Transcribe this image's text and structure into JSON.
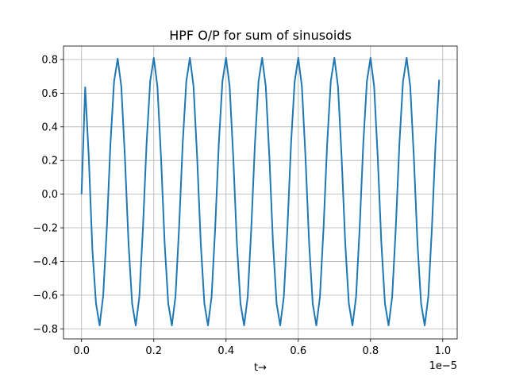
{
  "chart_data": {
    "type": "line",
    "title": "HPF O/P for sum of sinusoids",
    "xlabel": "t→",
    "ylabel": "",
    "x_offset_text": "1e−5",
    "x_scale": 1e-05,
    "xlim": [
      -0.05,
      1.04
    ],
    "ylim": [
      -0.86,
      0.88
    ],
    "xticks": [
      0.0,
      0.2,
      0.4,
      0.6,
      0.8,
      1.0
    ],
    "xtick_labels": [
      "0.0",
      "0.2",
      "0.4",
      "0.6",
      "0.8",
      "1.0"
    ],
    "yticks": [
      -0.8,
      -0.6,
      -0.4,
      -0.2,
      0.0,
      0.2,
      0.4,
      0.6,
      0.8
    ],
    "ytick_labels": [
      "−0.8",
      "−0.6",
      "−0.4",
      "−0.2",
      "0.0",
      "0.2",
      "0.4",
      "0.6",
      "0.8"
    ],
    "grid": true,
    "color": "#1f77b4",
    "series": [
      {
        "x": [
          0.0,
          0.01,
          0.02,
          0.03,
          0.04,
          0.05,
          0.06,
          0.07,
          0.08,
          0.09,
          0.1,
          0.11,
          0.12,
          0.13,
          0.14,
          0.15,
          0.16,
          0.17,
          0.18,
          0.19,
          0.2,
          0.21,
          0.22,
          0.23,
          0.24,
          0.25,
          0.26,
          0.27,
          0.28,
          0.29,
          0.3,
          0.31,
          0.32,
          0.33,
          0.34,
          0.35,
          0.36,
          0.37,
          0.38,
          0.39,
          0.4,
          0.41,
          0.42,
          0.43,
          0.44,
          0.45,
          0.46,
          0.47,
          0.48,
          0.49,
          0.5,
          0.51,
          0.52,
          0.53,
          0.54,
          0.55,
          0.56,
          0.57,
          0.58,
          0.59,
          0.6,
          0.61,
          0.62,
          0.63,
          0.64,
          0.65,
          0.66,
          0.67,
          0.68,
          0.69,
          0.7,
          0.71,
          0.72,
          0.73,
          0.74,
          0.75,
          0.76,
          0.77,
          0.78,
          0.79,
          0.8,
          0.81,
          0.82,
          0.83,
          0.84,
          0.85,
          0.86,
          0.87,
          0.88,
          0.89,
          0.9,
          0.91,
          0.92,
          0.93,
          0.94,
          0.95,
          0.96,
          0.97,
          0.98,
          0.99
        ],
        "y": [
          0.0,
          0.635,
          0.22,
          -0.33,
          -0.65,
          -0.78,
          -0.6,
          -0.2,
          0.3,
          0.67,
          0.805,
          0.64,
          0.22,
          -0.29,
          -0.65,
          -0.78,
          -0.61,
          -0.2,
          0.3,
          0.67,
          0.81,
          0.64,
          0.22,
          -0.29,
          -0.65,
          -0.78,
          -0.61,
          -0.2,
          0.3,
          0.67,
          0.81,
          0.64,
          0.22,
          -0.29,
          -0.65,
          -0.78,
          -0.61,
          -0.2,
          0.3,
          0.67,
          0.81,
          0.64,
          0.22,
          -0.29,
          -0.65,
          -0.78,
          -0.61,
          -0.2,
          0.3,
          0.67,
          0.81,
          0.64,
          0.22,
          -0.29,
          -0.65,
          -0.78,
          -0.61,
          -0.2,
          0.3,
          0.67,
          0.81,
          0.64,
          0.22,
          -0.29,
          -0.65,
          -0.78,
          -0.61,
          -0.2,
          0.3,
          0.67,
          0.81,
          0.64,
          0.22,
          -0.29,
          -0.65,
          -0.78,
          -0.61,
          -0.2,
          0.3,
          0.67,
          0.81,
          0.64,
          0.22,
          -0.29,
          -0.65,
          -0.78,
          -0.61,
          -0.2,
          0.3,
          0.67,
          0.81,
          0.64,
          0.22,
          -0.29,
          -0.65,
          -0.78,
          -0.61,
          -0.2,
          0.3,
          0.68
        ]
      }
    ]
  }
}
